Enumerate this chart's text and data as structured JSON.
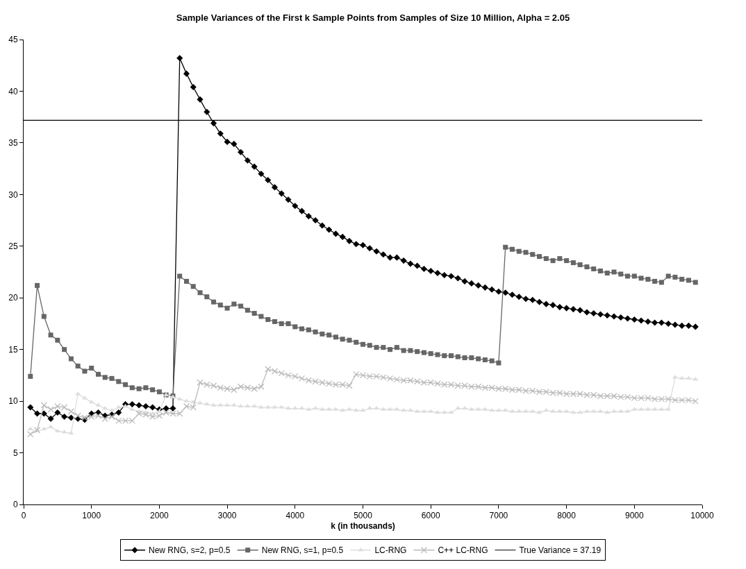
{
  "chart_data": {
    "type": "line",
    "title": "Sample Variances of the First k Sample Points from Samples of Size 10 Million, Alpha = 2.05",
    "xlabel": "k (in thousands)",
    "x": [
      100,
      200,
      300,
      400,
      500,
      600,
      700,
      800,
      900,
      1000,
      1100,
      1200,
      1300,
      1400,
      1500,
      1600,
      1700,
      1800,
      1900,
      2000,
      2100,
      2200,
      2300,
      2400,
      2500,
      2600,
      2700,
      2800,
      2900,
      3000,
      3100,
      3200,
      3300,
      3400,
      3500,
      3600,
      3700,
      3800,
      3900,
      4000,
      4100,
      4200,
      4300,
      4400,
      4500,
      4600,
      4700,
      4800,
      4900,
      5000,
      5100,
      5200,
      5300,
      5400,
      5500,
      5600,
      5700,
      5800,
      5900,
      6000,
      6100,
      6200,
      6300,
      6400,
      6500,
      6600,
      6700,
      6800,
      6900,
      7000,
      7100,
      7200,
      7300,
      7400,
      7500,
      7600,
      7700,
      7800,
      7900,
      8000,
      8100,
      8200,
      8300,
      8400,
      8500,
      8600,
      8700,
      8800,
      8900,
      9000,
      9100,
      9200,
      9300,
      9400,
      9500,
      9600,
      9700,
      9800,
      9900
    ],
    "series": [
      {
        "name": "New RNG, s=2, p=0.5",
        "color": "#000000",
        "marker": "diamond",
        "values": [
          9.4,
          8.8,
          8.8,
          8.3,
          8.9,
          8.5,
          8.4,
          8.3,
          8.2,
          8.8,
          8.9,
          8.6,
          8.7,
          8.9,
          9.7,
          9.7,
          9.6,
          9.5,
          9.4,
          9.2,
          9.3,
          9.3,
          43.2,
          41.7,
          40.4,
          39.2,
          38.0,
          36.9,
          35.9,
          35.1,
          34.9,
          34.1,
          33.3,
          32.7,
          32.0,
          31.4,
          30.7,
          30.1,
          29.5,
          28.9,
          28.4,
          27.9,
          27.5,
          27.0,
          26.6,
          26.2,
          25.9,
          25.5,
          25.2,
          25.1,
          24.8,
          24.5,
          24.2,
          23.9,
          23.9,
          23.6,
          23.3,
          23.1,
          22.8,
          22.6,
          22.4,
          22.2,
          22.1,
          21.9,
          21.6,
          21.4,
          21.2,
          21.0,
          20.8,
          20.6,
          20.5,
          20.3,
          20.1,
          19.9,
          19.8,
          19.6,
          19.4,
          19.3,
          19.1,
          19.0,
          18.9,
          18.8,
          18.6,
          18.5,
          18.4,
          18.3,
          18.2,
          18.1,
          18.0,
          17.9,
          17.8,
          17.7,
          17.6,
          17.6,
          17.5,
          17.4,
          17.3,
          17.3,
          17.2
        ]
      },
      {
        "name": "New RNG, s=1, p=0.5",
        "color": "#666666",
        "marker": "square",
        "values": [
          12.4,
          21.2,
          18.2,
          16.4,
          15.9,
          15.0,
          14.1,
          13.4,
          12.9,
          13.2,
          12.6,
          12.3,
          12.2,
          11.9,
          11.6,
          11.3,
          11.2,
          11.3,
          11.1,
          10.9,
          10.6,
          10.5,
          22.1,
          21.6,
          21.1,
          20.5,
          20.1,
          19.6,
          19.3,
          19.0,
          19.4,
          19.2,
          18.8,
          18.5,
          18.2,
          17.9,
          17.7,
          17.5,
          17.5,
          17.2,
          17.0,
          16.9,
          16.7,
          16.5,
          16.4,
          16.2,
          16.0,
          15.9,
          15.7,
          15.5,
          15.4,
          15.2,
          15.2,
          15.0,
          15.2,
          14.9,
          14.9,
          14.8,
          14.7,
          14.6,
          14.5,
          14.4,
          14.4,
          14.3,
          14.2,
          14.2,
          14.1,
          14.0,
          13.9,
          13.7,
          24.9,
          24.7,
          24.5,
          24.4,
          24.2,
          24.0,
          23.8,
          23.6,
          23.8,
          23.6,
          23.4,
          23.2,
          23.0,
          22.8,
          22.6,
          22.4,
          22.5,
          22.3,
          22.1,
          22.1,
          21.9,
          21.8,
          21.6,
          21.5,
          22.1,
          22.0,
          21.8,
          21.7,
          21.5
        ]
      },
      {
        "name": "LC-RNG",
        "color": "#dddddd",
        "marker": "triangle",
        "values": [
          7.3,
          7.1,
          7.3,
          7.5,
          7.1,
          7.0,
          6.9,
          10.7,
          10.3,
          9.9,
          9.6,
          9.3,
          9.1,
          9.4,
          9.5,
          9.2,
          9.0,
          8.9,
          8.8,
          9.0,
          10.6,
          10.4,
          10.2,
          10.0,
          9.9,
          9.8,
          9.7,
          9.6,
          9.6,
          9.6,
          9.6,
          9.5,
          9.5,
          9.5,
          9.4,
          9.4,
          9.4,
          9.4,
          9.3,
          9.3,
          9.3,
          9.2,
          9.3,
          9.2,
          9.2,
          9.2,
          9.1,
          9.2,
          9.1,
          9.1,
          9.3,
          9.3,
          9.2,
          9.2,
          9.2,
          9.1,
          9.1,
          9.0,
          9.0,
          9.0,
          8.9,
          8.9,
          8.9,
          9.3,
          9.3,
          9.2,
          9.2,
          9.2,
          9.1,
          9.1,
          9.1,
          9.0,
          9.0,
          9.0,
          9.0,
          8.9,
          9.1,
          9.0,
          9.0,
          9.0,
          8.9,
          8.9,
          9.0,
          9.0,
          9.0,
          8.9,
          9.0,
          9.0,
          9.0,
          9.2,
          9.2,
          9.2,
          9.2,
          9.2,
          9.2,
          12.3,
          12.2,
          12.2,
          12.1
        ]
      },
      {
        "name": "C++ LC-RNG",
        "color": "#bbbbbb",
        "marker": "cross",
        "values": [
          6.8,
          7.2,
          9.6,
          9.2,
          9.5,
          9.4,
          9.0,
          8.6,
          8.4,
          8.5,
          8.6,
          8.3,
          8.5,
          8.1,
          8.1,
          8.1,
          8.8,
          8.7,
          8.5,
          8.6,
          8.9,
          8.8,
          8.8,
          9.5,
          9.4,
          11.8,
          11.6,
          11.5,
          11.3,
          11.2,
          11.1,
          11.4,
          11.3,
          11.2,
          11.4,
          13.1,
          12.9,
          12.7,
          12.5,
          12.4,
          12.2,
          12.0,
          11.9,
          11.8,
          11.7,
          11.6,
          11.6,
          11.5,
          12.6,
          12.5,
          12.4,
          12.4,
          12.3,
          12.2,
          12.1,
          12.0,
          12.0,
          11.9,
          11.8,
          11.8,
          11.7,
          11.6,
          11.6,
          11.5,
          11.5,
          11.4,
          11.4,
          11.3,
          11.3,
          11.2,
          11.2,
          11.1,
          11.1,
          11.0,
          11.0,
          10.9,
          10.9,
          10.8,
          10.8,
          10.7,
          10.7,
          10.7,
          10.6,
          10.6,
          10.5,
          10.5,
          10.5,
          10.4,
          10.4,
          10.3,
          10.3,
          10.3,
          10.2,
          10.2,
          10.2,
          10.1,
          10.1,
          10.1,
          10.0
        ]
      }
    ],
    "ref_lines": [
      {
        "axis": "y",
        "value": 37.19,
        "label": "True Variance = 37.19",
        "color": "#000000",
        "line_style": "solid"
      }
    ],
    "xlim": [
      0,
      10000
    ],
    "xticks": [
      0,
      1000,
      2000,
      3000,
      4000,
      5000,
      6000,
      7000,
      8000,
      9000,
      10000
    ],
    "ylim": [
      0,
      45
    ],
    "yticks": [
      0,
      5,
      10,
      15,
      20,
      25,
      30,
      35,
      40,
      45
    ],
    "grid": false,
    "legend": "bottom",
    "line_style": "solid"
  }
}
